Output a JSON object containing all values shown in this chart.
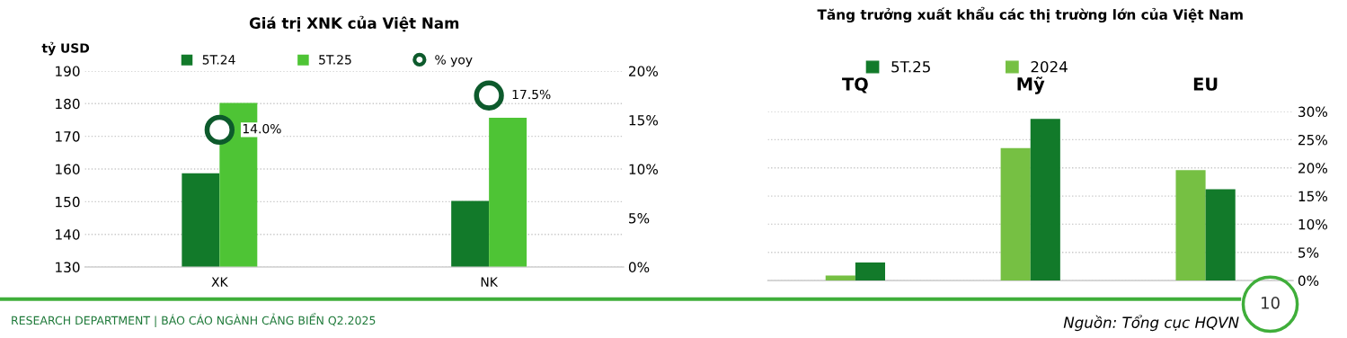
{
  "chart_data": [
    {
      "type": "bar",
      "title": "Giá trị XNK của Việt Nam",
      "ylabel": "tỷ USD",
      "categories": [
        "XK",
        "NK"
      ],
      "series": [
        {
          "name": "5T.24",
          "color": "#127a2a",
          "values": [
            158.7,
            150.2
          ]
        },
        {
          "name": "5T.25",
          "color": "#4ec435",
          "values": [
            180.2,
            175.7
          ]
        },
        {
          "name": "% yoy",
          "type": "scatter",
          "axis": "y2",
          "color": "#0d5a2c",
          "values": [
            14.0,
            17.5
          ],
          "value_labels": [
            "14.0%",
            "17.5%"
          ]
        }
      ],
      "ylim": [
        130,
        190
      ],
      "yticks": [
        130,
        140,
        150,
        160,
        170,
        180,
        190
      ],
      "y2lim": [
        0,
        20
      ],
      "y2ticks": [
        {
          "value": 0,
          "label": "0%"
        },
        {
          "value": 5,
          "label": "5%"
        },
        {
          "value": 10,
          "label": "10%"
        },
        {
          "value": 15,
          "label": "15%"
        },
        {
          "value": 20,
          "label": "20%"
        }
      ],
      "grid": "y",
      "legend": "top",
      "marker": "circle",
      "annotations": [
        "RESEARCH DEPARTMENT | BÁO CÁO NGÀNH CẢNG BIỂN Q2.2025"
      ]
    },
    {
      "type": "bar",
      "title": "Tăng trưởng xuất khẩu các thị trường lớn của Việt Nam",
      "categories": [
        "TQ",
        "Mỹ",
        "EU"
      ],
      "series": [
        {
          "name": "5T.25",
          "color": "#127a2a",
          "values": [
            3.2,
            28.7,
            16.2
          ],
          "axis": "y2"
        },
        {
          "name": "2024",
          "color": "#76c043",
          "values": [
            0.9,
            23.5,
            19.6
          ],
          "axis": "y2"
        }
      ],
      "y2lim": [
        0,
        30
      ],
      "y2ticks": [
        {
          "value": 0,
          "label": "0%"
        },
        {
          "value": 5,
          "label": "5%"
        },
        {
          "value": 10,
          "label": "10%"
        },
        {
          "value": 15,
          "label": "15%"
        },
        {
          "value": 20,
          "label": "20%"
        },
        {
          "value": 25,
          "label": "25%"
        },
        {
          "value": 30,
          "label": "30%"
        }
      ],
      "grid": "y",
      "legend": "top",
      "annotations": [
        "Nguồn: Tổng cục HQVN",
        "10"
      ]
    }
  ]
}
